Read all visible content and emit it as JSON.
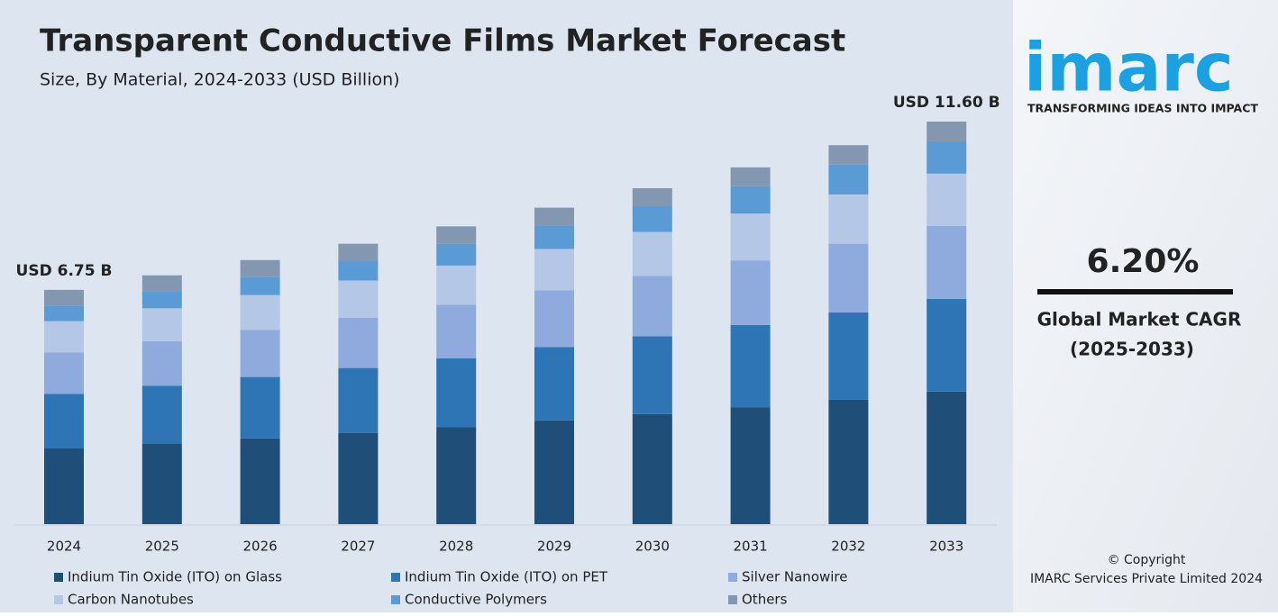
{
  "chart_data": {
    "type": "stacked-bar",
    "title": "Transparent Conductive Films Market Forecast",
    "subtitle": "Size, By Material, 2024-2033 (USD Billion)",
    "categories": [
      "2024",
      "2025",
      "2026",
      "2027",
      "2028",
      "2029",
      "2030",
      "2031",
      "2032",
      "2033"
    ],
    "series": [
      {
        "name": "Indium Tin Oxide (ITO) on Glass",
        "color": "#1f4e79",
        "values": [
          2.18,
          2.32,
          2.47,
          2.63,
          2.79,
          2.99,
          3.17,
          3.37,
          3.59,
          3.82
        ]
      },
      {
        "name": "Indium Tin Oxide (ITO) on PET",
        "color": "#2e75b6",
        "values": [
          1.57,
          1.67,
          1.77,
          1.87,
          1.99,
          2.11,
          2.24,
          2.37,
          2.51,
          2.67
        ]
      },
      {
        "name": "Silver Nanowire",
        "color": "#8faadc",
        "values": [
          1.2,
          1.28,
          1.36,
          1.45,
          1.54,
          1.64,
          1.74,
          1.86,
          1.98,
          2.1
        ]
      },
      {
        "name": "Carbon Nanotubes",
        "color": "#b4c7e7",
        "values": [
          0.9,
          0.95,
          1.0,
          1.07,
          1.13,
          1.19,
          1.27,
          1.35,
          1.42,
          1.51
        ]
      },
      {
        "name": "Conductive Polymers",
        "color": "#5b9bd5",
        "values": [
          0.45,
          0.49,
          0.53,
          0.57,
          0.63,
          0.67,
          0.74,
          0.79,
          0.86,
          0.93
        ]
      },
      {
        "name": "Others",
        "color": "#8497b0",
        "values": [
          0.45,
          0.46,
          0.48,
          0.49,
          0.5,
          0.52,
          0.52,
          0.54,
          0.56,
          0.57
        ]
      }
    ],
    "annotations": [
      {
        "text": "USD 6.75 B",
        "category": "2024"
      },
      {
        "text": "USD 11.60 B",
        "category": "2033"
      }
    ]
  },
  "sidebar": {
    "logo": "imarc",
    "tagline": "TRANSFORMING IDEAS INTO IMPACT",
    "cagr": "6.20%",
    "cagr_label": "Global Market CAGR",
    "cagr_period": "(2025-2033)",
    "copyright": "© Copyright",
    "company": "IMARC Services Private Limited 2024"
  }
}
